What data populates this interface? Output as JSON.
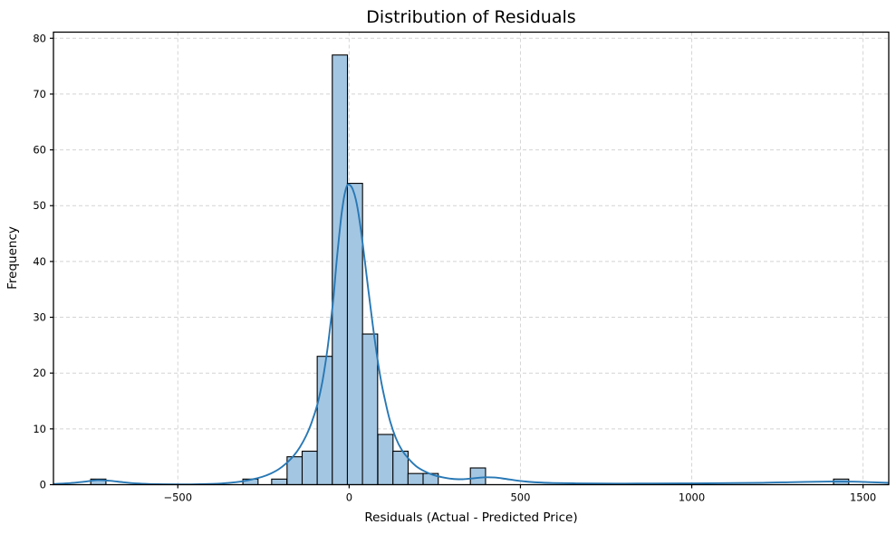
{
  "figure": {
    "title": "Distribution of Residuals",
    "xlabel": "Residuals (Actual - Predicted Price)",
    "ylabel": "Frequency"
  },
  "colors": {
    "background": "#ffffff",
    "bar_fill": "#a3c6e2",
    "bar_edge": "#000000",
    "kde_line": "#2878b5",
    "grid": "#d4d4d4",
    "axis": "#000000",
    "text": "#000000"
  },
  "chart_data": {
    "type": "histogram",
    "title": "Distribution of Residuals",
    "xlabel": "Residuals (Actual - Predicted Price)",
    "ylabel": "Frequency",
    "xlim": [
      -863,
      1575
    ],
    "ylim": [
      0,
      81.1
    ],
    "x_ticks": [
      -500,
      0,
      500,
      1000,
      1500
    ],
    "x_tick_labels": [
      "−500",
      "0",
      "500",
      "1000",
      "1500"
    ],
    "y_ticks": [
      0,
      10,
      20,
      30,
      40,
      50,
      60,
      70,
      80
    ],
    "y_tick_labels": [
      "0",
      "10",
      "20",
      "30",
      "40",
      "50",
      "60",
      "70",
      "80"
    ],
    "grid": "both-dashed",
    "legend": "none",
    "bin_width": 44.3,
    "bars": [
      {
        "center": -732,
        "count": 1
      },
      {
        "center": -288,
        "count": 1
      },
      {
        "center": -204,
        "count": 1
      },
      {
        "center": -159,
        "count": 5
      },
      {
        "center": -115,
        "count": 6
      },
      {
        "center": -71,
        "count": 23
      },
      {
        "center": -27,
        "count": 77
      },
      {
        "center": 17,
        "count": 54
      },
      {
        "center": 61,
        "count": 27
      },
      {
        "center": 106,
        "count": 9
      },
      {
        "center": 150,
        "count": 6
      },
      {
        "center": 194,
        "count": 2
      },
      {
        "center": 238,
        "count": 2
      },
      {
        "center": 376,
        "count": 3
      },
      {
        "center": 1436,
        "count": 1
      }
    ],
    "kde_series": {
      "name": "kde",
      "points": [
        [
          -863,
          0.12
        ],
        [
          -815,
          0.28
        ],
        [
          -775,
          0.52
        ],
        [
          -735,
          0.8
        ],
        [
          -698,
          0.7
        ],
        [
          -660,
          0.44
        ],
        [
          -622,
          0.23
        ],
        [
          -582,
          0.12
        ],
        [
          -538,
          0.07
        ],
        [
          -490,
          0.05
        ],
        [
          -435,
          0.09
        ],
        [
          -385,
          0.18
        ],
        [
          -345,
          0.35
        ],
        [
          -312,
          0.6
        ],
        [
          -282,
          0.95
        ],
        [
          -254,
          1.4
        ],
        [
          -229,
          2.0
        ],
        [
          -206,
          2.75
        ],
        [
          -184,
          3.8
        ],
        [
          -163,
          5.1
        ],
        [
          -144,
          6.7
        ],
        [
          -126,
          8.7
        ],
        [
          -109,
          11.2
        ],
        [
          -93,
          14.3
        ],
        [
          -78,
          18.5
        ],
        [
          -64,
          24.0
        ],
        [
          -52,
          30.0
        ],
        [
          -45,
          34.0
        ],
        [
          -38,
          39.0
        ],
        [
          -30,
          44.0
        ],
        [
          -22,
          48.5
        ],
        [
          -14,
          51.8
        ],
        [
          -6,
          53.6
        ],
        [
          2,
          53.7
        ],
        [
          10,
          53.0
        ],
        [
          20,
          51.0
        ],
        [
          30,
          47.5
        ],
        [
          40,
          43.0
        ],
        [
          52,
          37.0
        ],
        [
          64,
          31.0
        ],
        [
          78,
          24.5
        ],
        [
          92,
          19.0
        ],
        [
          106,
          14.8
        ],
        [
          120,
          11.3
        ],
        [
          136,
          8.4
        ],
        [
          154,
          6.2
        ],
        [
          174,
          4.6
        ],
        [
          196,
          3.3
        ],
        [
          220,
          2.4
        ],
        [
          245,
          1.75
        ],
        [
          272,
          1.33
        ],
        [
          300,
          1.05
        ],
        [
          330,
          0.98
        ],
        [
          360,
          1.12
        ],
        [
          392,
          1.32
        ],
        [
          425,
          1.28
        ],
        [
          455,
          1.05
        ],
        [
          485,
          0.78
        ],
        [
          515,
          0.56
        ],
        [
          550,
          0.4
        ],
        [
          595,
          0.3
        ],
        [
          655,
          0.24
        ],
        [
          725,
          0.21
        ],
        [
          805,
          0.2
        ],
        [
          885,
          0.21
        ],
        [
          965,
          0.23
        ],
        [
          1045,
          0.25
        ],
        [
          1125,
          0.29
        ],
        [
          1205,
          0.34
        ],
        [
          1285,
          0.43
        ],
        [
          1355,
          0.52
        ],
        [
          1425,
          0.58
        ],
        [
          1475,
          0.54
        ],
        [
          1525,
          0.44
        ],
        [
          1575,
          0.33
        ]
      ]
    }
  }
}
